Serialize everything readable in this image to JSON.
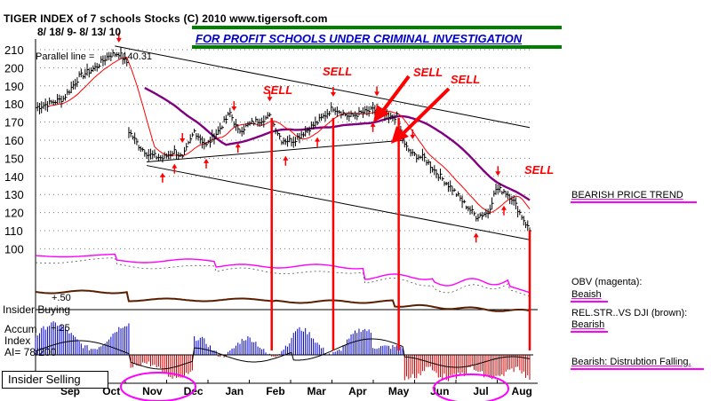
{
  "header": {
    "title_line": "TIGER INDEX of  7 schools Stocks  (C) 2010  www.tigersoft.com",
    "date_range": "8/ 18/ 9- 8/ 13/ 10",
    "parallel_line": "Parallel line =",
    "parallel_value": "140.31",
    "banner": "FOR PROFIT SCHOOLS UNDER CRIMINAL INVESTIGATION"
  },
  "panel_labels": {
    "insider_buying": "Insider Buying",
    "plus50": "+.50",
    "accum": "Accum",
    "index": "Index",
    "ai": "AI= 78/200",
    "plus25": "+.25",
    "insider_selling": "Insider Selling"
  },
  "sell_labels": [
    "SELL",
    "SELL",
    "SELL",
    "SELL",
    "SELL"
  ],
  "side_notes": {
    "trend": "BEARISH PRICE TREND",
    "obv_title": "OBV (magenta):",
    "obv_value": "Beaish",
    "relstr_title": "REL.STR..VS DJI (brown):",
    "relstr_value": "Bearish",
    "distrib": "Bearish: Distrubtion Falling."
  },
  "colors": {
    "price": "#000000",
    "ma_short": "#ff0000",
    "ma_long": "#800080",
    "obv": "#ff00ff",
    "relstr": "#5a1e00",
    "accum_pos": "#0000cc",
    "accum_neg": "#cc0000",
    "sell_arrow": "#ff0000",
    "banner_line": "#008000"
  },
  "chart_data": {
    "type": "line",
    "title": "TIGER INDEX of  7 schools Stocks",
    "months": [
      "Sep",
      "Oct",
      "Nov",
      "Dec",
      "Jan",
      "Feb",
      "Mar",
      "Apr",
      "May",
      "Jun",
      "Jul",
      "Aug"
    ],
    "y_ticks": [
      210,
      200,
      190,
      180,
      170,
      160,
      150,
      140,
      130,
      120,
      110,
      100
    ],
    "ylim": [
      100,
      215
    ],
    "n_points": 250,
    "price_keyframes": [
      {
        "t": 0,
        "v": 178
      },
      {
        "t": 6,
        "v": 180
      },
      {
        "t": 14,
        "v": 183
      },
      {
        "t": 22,
        "v": 195
      },
      {
        "t": 30,
        "v": 200
      },
      {
        "t": 37,
        "v": 207
      },
      {
        "t": 42,
        "v": 208
      },
      {
        "t": 46,
        "v": 203
      },
      {
        "t": 47,
        "v": 165
      },
      {
        "t": 52,
        "v": 157
      },
      {
        "t": 57,
        "v": 152
      },
      {
        "t": 64,
        "v": 150
      },
      {
        "t": 70,
        "v": 154
      },
      {
        "t": 74,
        "v": 150
      },
      {
        "t": 80,
        "v": 165
      },
      {
        "t": 86,
        "v": 157
      },
      {
        "t": 92,
        "v": 165
      },
      {
        "t": 98,
        "v": 175
      },
      {
        "t": 102,
        "v": 165
      },
      {
        "t": 110,
        "v": 170
      },
      {
        "t": 118,
        "v": 173
      },
      {
        "t": 124,
        "v": 160
      },
      {
        "t": 130,
        "v": 160
      },
      {
        "t": 136,
        "v": 165
      },
      {
        "t": 142,
        "v": 170
      },
      {
        "t": 150,
        "v": 178
      },
      {
        "t": 158,
        "v": 173
      },
      {
        "t": 164,
        "v": 175
      },
      {
        "t": 172,
        "v": 177
      },
      {
        "t": 178,
        "v": 172
      },
      {
        "t": 182,
        "v": 173
      },
      {
        "t": 186,
        "v": 157
      },
      {
        "t": 190,
        "v": 152
      },
      {
        "t": 196,
        "v": 150
      },
      {
        "t": 202,
        "v": 142
      },
      {
        "t": 210,
        "v": 133
      },
      {
        "t": 216,
        "v": 125
      },
      {
        "t": 222,
        "v": 118
      },
      {
        "t": 228,
        "v": 120
      },
      {
        "t": 232,
        "v": 133
      },
      {
        "t": 236,
        "v": 132
      },
      {
        "t": 240,
        "v": 128
      },
      {
        "t": 244,
        "v": 120
      },
      {
        "t": 249,
        "v": 110
      }
    ],
    "parallel_lines": [
      {
        "t1": 40,
        "v1": 212,
        "t2": 249,
        "v2": 167
      },
      {
        "t1": 56,
        "v1": 146,
        "t2": 249,
        "v2": 105
      },
      {
        "t1": 56,
        "v1": 148,
        "t2": 186,
        "v2": 160
      }
    ],
    "sell_signal_indices": [
      119,
      150,
      183,
      249
    ],
    "up_arrow_indices": [
      64,
      70,
      86,
      102,
      126,
      142,
      170,
      222,
      236
    ],
    "down_arrow_indices": [
      42,
      74,
      100,
      118,
      150,
      172,
      190,
      233
    ]
  }
}
